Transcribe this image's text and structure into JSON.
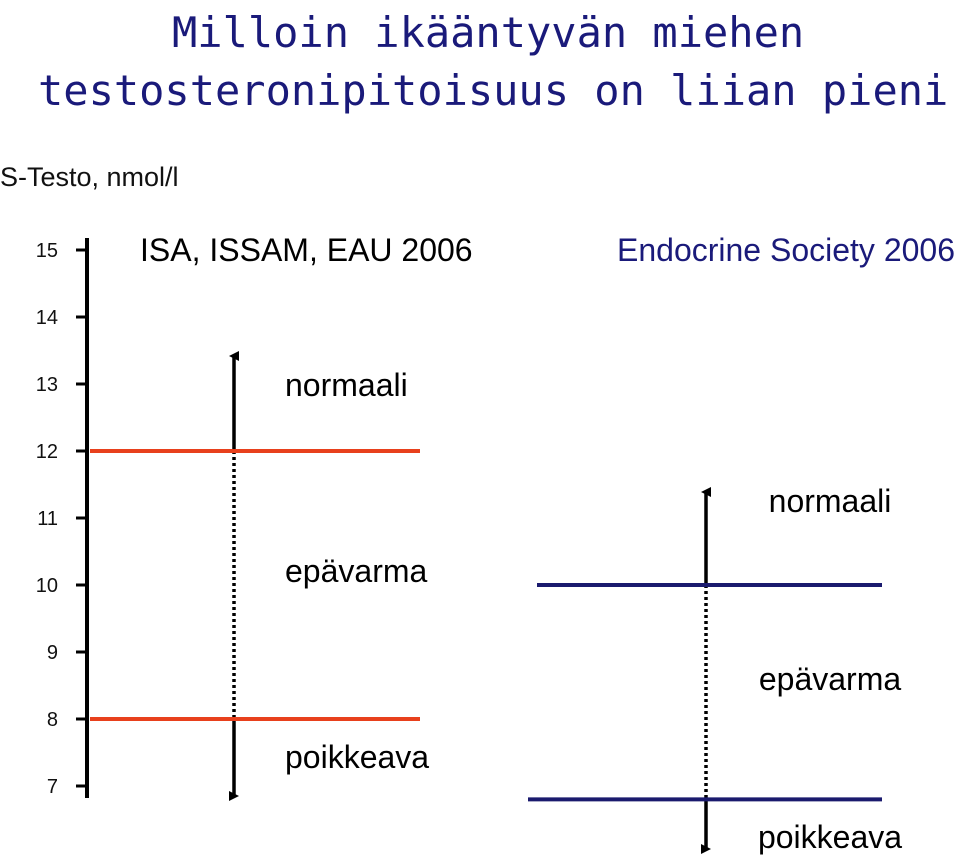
{
  "title_line1": "Milloin ikääntyvän miehen",
  "title_line2": "testosteronipitoisuus on liian pieni ?",
  "axis_label": "S-Testo, nmol/l",
  "axis": {
    "min": 7,
    "max": 15,
    "ticks": [
      15,
      14,
      13,
      12,
      11,
      10,
      9,
      8,
      7
    ]
  },
  "colors": {
    "title": "#1a1a7a",
    "isa_line": "#e8401c",
    "es_line": "#1a1a6e",
    "es_header": "#1a1a7a"
  },
  "guidelines": [
    {
      "name": "ISA, ISSAM, EAU 2006",
      "thresholds": [
        12,
        8
      ],
      "zones": [
        "normaali",
        "epävarma",
        "poikkeava"
      ]
    },
    {
      "name": "Endocrine Society 2006",
      "thresholds": [
        10,
        6.8
      ],
      "zones": [
        "normaali",
        "epävarma",
        "poikkeava"
      ]
    }
  ]
}
